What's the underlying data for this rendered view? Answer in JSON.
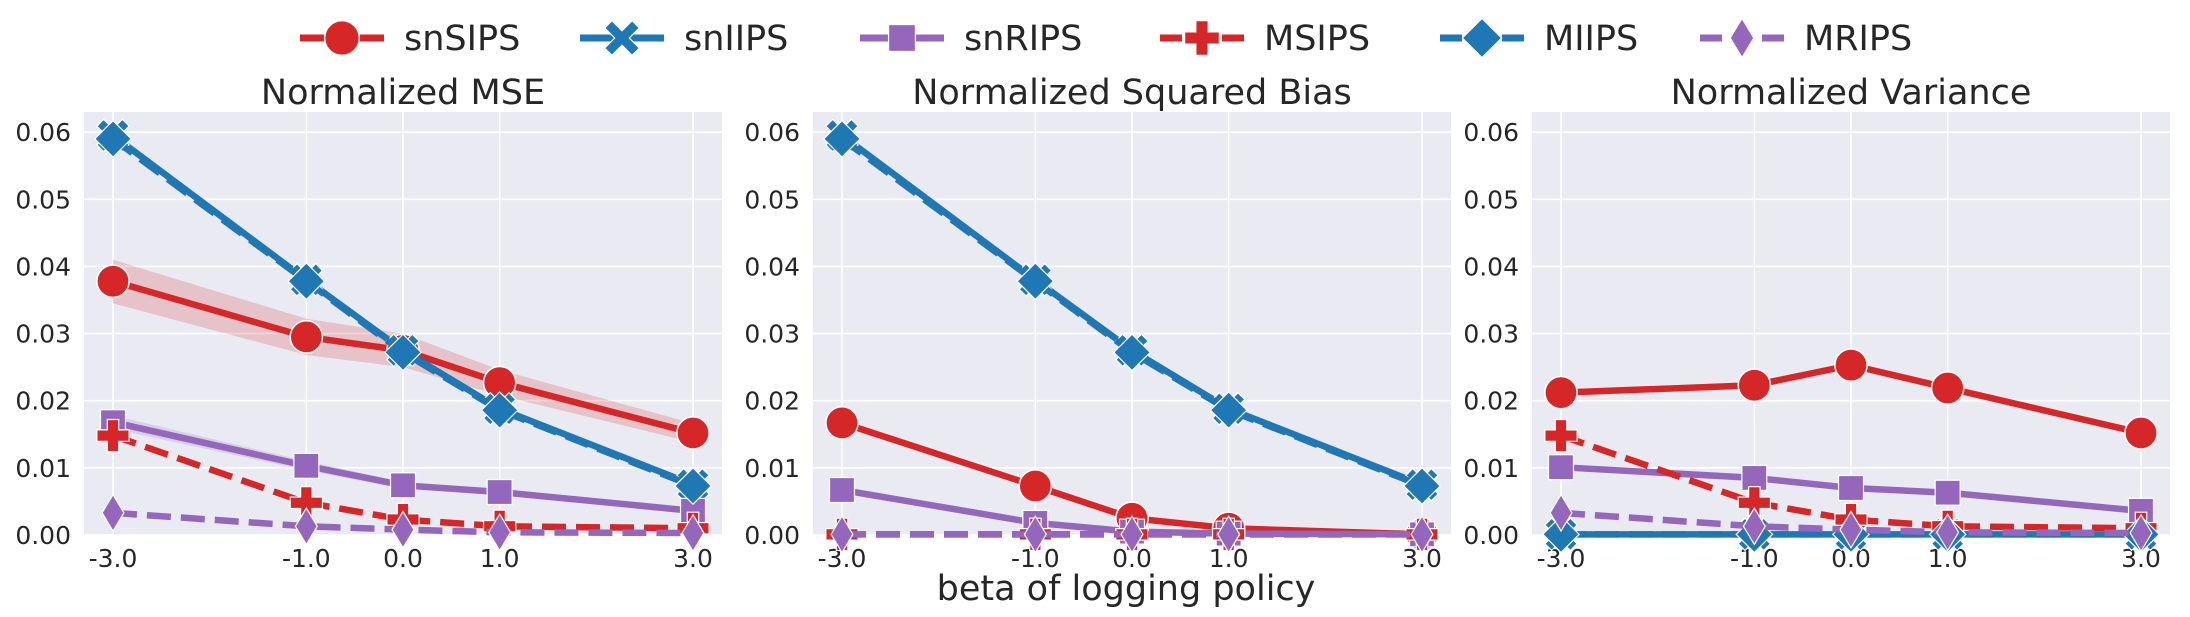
{
  "figure": {
    "xlabel": "beta of logging policy"
  },
  "legend": [
    {
      "name": "snSIPS",
      "color": "#d62728",
      "marker": "circle",
      "dashed": false
    },
    {
      "name": "snIIPS",
      "color": "#1f77b4",
      "marker": "x",
      "dashed": false
    },
    {
      "name": "snRIPS",
      "color": "#9467bd",
      "marker": "square",
      "dashed": false
    },
    {
      "name": "MSIPS",
      "color": "#d62728",
      "marker": "plus",
      "dashed": true
    },
    {
      "name": "MIIPS",
      "color": "#1f77b4",
      "marker": "diamond",
      "dashed": true
    },
    {
      "name": "MRIPS",
      "color": "#9467bd",
      "marker": "thin-diamond",
      "dashed": true
    }
  ],
  "chart_data": [
    {
      "type": "line",
      "title": "Normalized MSE",
      "x": [
        -3.0,
        -1.0,
        0.0,
        1.0,
        3.0
      ],
      "x_tick_labels": [
        "-3.0",
        "-1.0",
        "0.0",
        "1.0",
        "3.0"
      ],
      "ylim": [
        0,
        0.063
      ],
      "y_ticks": [
        0.0,
        0.01,
        0.02,
        0.03,
        0.04,
        0.05,
        0.06
      ],
      "y_tick_labels": [
        "0.00",
        "0.01",
        "0.02",
        "0.03",
        "0.04",
        "0.05",
        "0.06"
      ],
      "grid": true,
      "series": [
        {
          "name": "snSIPS",
          "values": [
            0.0378,
            0.0295,
            0.0275,
            0.0227,
            0.0152
          ],
          "band": [
            [
              0.0345,
              0.041
            ],
            [
              0.0268,
              0.0322
            ],
            [
              0.025,
              0.03
            ],
            [
              0.0208,
              0.0246
            ],
            [
              0.0138,
              0.0166
            ]
          ]
        },
        {
          "name": "snIIPS",
          "values": [
            0.0595,
            0.038,
            0.0275,
            0.0188,
            0.0075
          ]
        },
        {
          "name": "snRIPS",
          "values": [
            0.0168,
            0.0103,
            0.0074,
            0.0064,
            0.0036
          ],
          "band": [
            [
              0.0158,
              0.0178
            ],
            [
              0.0096,
              0.011
            ],
            [
              0.0069,
              0.0079
            ],
            [
              0.0059,
              0.0069
            ],
            [
              0.0032,
              0.004
            ]
          ]
        },
        {
          "name": "MSIPS",
          "values": [
            0.0148,
            0.0048,
            0.0023,
            0.0013,
            0.001
          ]
        },
        {
          "name": "MIIPS",
          "values": [
            0.059,
            0.0378,
            0.0272,
            0.0186,
            0.0073
          ]
        },
        {
          "name": "MRIPS",
          "values": [
            0.0033,
            0.0013,
            0.0008,
            0.0004,
            0.0003
          ]
        }
      ]
    },
    {
      "type": "line",
      "title": "Normalized Squared Bias",
      "x": [
        -3.0,
        -1.0,
        0.0,
        1.0,
        3.0
      ],
      "x_tick_labels": [
        "-3.0",
        "-1.0",
        "0.0",
        "1.0",
        "3.0"
      ],
      "ylim": [
        0,
        0.063
      ],
      "y_ticks": [
        0.0,
        0.01,
        0.02,
        0.03,
        0.04,
        0.05,
        0.06
      ],
      "y_tick_labels": [
        "0.00",
        "0.01",
        "0.02",
        "0.03",
        "0.04",
        "0.05",
        "0.06"
      ],
      "grid": true,
      "series": [
        {
          "name": "snSIPS",
          "values": [
            0.0167,
            0.0073,
            0.0025,
            0.001,
            0.0001
          ]
        },
        {
          "name": "snIIPS",
          "values": [
            0.0595,
            0.038,
            0.0275,
            0.0188,
            0.0075
          ]
        },
        {
          "name": "snRIPS",
          "values": [
            0.0067,
            0.0018,
            0.0005,
            0.0002,
            0.0001
          ]
        },
        {
          "name": "MSIPS",
          "values": [
            0.0001,
            0.0001,
            0.0001,
            0.0001,
            0.0001
          ]
        },
        {
          "name": "MIIPS",
          "values": [
            0.059,
            0.0378,
            0.0272,
            0.0186,
            0.0073
          ]
        },
        {
          "name": "MRIPS",
          "values": [
            0.0001,
            0.0001,
            0.0001,
            0.0001,
            0.0001
          ]
        }
      ]
    },
    {
      "type": "line",
      "title": "Normalized Variance",
      "x": [
        -3.0,
        -1.0,
        0.0,
        1.0,
        3.0
      ],
      "x_tick_labels": [
        "-3.0",
        "-1.0",
        "0.0",
        "1.0",
        "3.0"
      ],
      "ylim": [
        0,
        0.063
      ],
      "y_ticks": [
        0.0,
        0.01,
        0.02,
        0.03,
        0.04,
        0.05,
        0.06
      ],
      "y_tick_labels": [
        "0.00",
        "0.01",
        "0.02",
        "0.03",
        "0.04",
        "0.05",
        "0.06"
      ],
      "grid": true,
      "series": [
        {
          "name": "snSIPS",
          "values": [
            0.0212,
            0.0223,
            0.0253,
            0.0219,
            0.0152
          ]
        },
        {
          "name": "snIIPS",
          "values": [
            0.0001,
            0.0001,
            0.0001,
            0.0001,
            0.0001
          ]
        },
        {
          "name": "snRIPS",
          "values": [
            0.0101,
            0.0085,
            0.007,
            0.0063,
            0.0036
          ]
        },
        {
          "name": "MSIPS",
          "values": [
            0.0148,
            0.0048,
            0.0023,
            0.0013,
            0.001
          ]
        },
        {
          "name": "MIIPS",
          "values": [
            0.0001,
            0.0001,
            0.0001,
            0.0001,
            0.0001
          ]
        },
        {
          "name": "MRIPS",
          "values": [
            0.0033,
            0.0013,
            0.0008,
            0.0004,
            0.0003
          ]
        }
      ]
    }
  ]
}
